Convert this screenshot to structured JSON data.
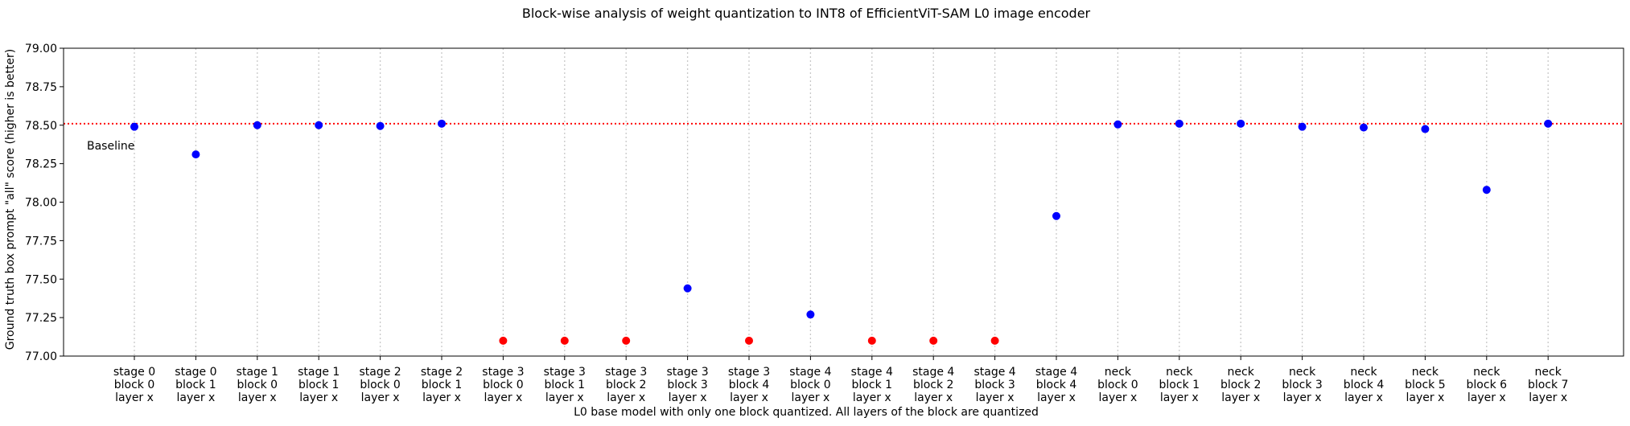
{
  "chart_data": {
    "type": "scatter",
    "title": "Block-wise analysis of weight quantization to INT8 of EfficientViT-SAM L0 image encoder",
    "xlabel": "L0 base model with only one block quantized. All layers of the block are quantized",
    "ylabel": "Ground truth box prompt \"all\" score (higher is better)",
    "ylim": [
      77.0,
      79.0
    ],
    "yticks": [
      "77.00",
      "77.25",
      "77.50",
      "77.75",
      "78.00",
      "78.25",
      "78.50",
      "78.75",
      "79.00"
    ],
    "categories": [
      [
        "stage 0",
        "block 0",
        "layer x"
      ],
      [
        "stage 0",
        "block 1",
        "layer x"
      ],
      [
        "stage 1",
        "block 0",
        "layer x"
      ],
      [
        "stage 1",
        "block 1",
        "layer x"
      ],
      [
        "stage 2",
        "block 0",
        "layer x"
      ],
      [
        "stage 2",
        "block 1",
        "layer x"
      ],
      [
        "stage 3",
        "block 0",
        "layer x"
      ],
      [
        "stage 3",
        "block 1",
        "layer x"
      ],
      [
        "stage 3",
        "block 2",
        "layer x"
      ],
      [
        "stage 3",
        "block 3",
        "layer x"
      ],
      [
        "stage 3",
        "block 4",
        "layer x"
      ],
      [
        "stage 4",
        "block 0",
        "layer x"
      ],
      [
        "stage 4",
        "block 1",
        "layer x"
      ],
      [
        "stage 4",
        "block 2",
        "layer x"
      ],
      [
        "stage 4",
        "block 3",
        "layer x"
      ],
      [
        "stage 4",
        "block 4",
        "layer x"
      ],
      [
        "neck",
        "block 0",
        "layer x"
      ],
      [
        "neck",
        "block 1",
        "layer x"
      ],
      [
        "neck",
        "block 2",
        "layer x"
      ],
      [
        "neck",
        "block 3",
        "layer x"
      ],
      [
        "neck",
        "block 4",
        "layer x"
      ],
      [
        "neck",
        "block 5",
        "layer x"
      ],
      [
        "neck",
        "block 6",
        "layer x"
      ],
      [
        "neck",
        "block 7",
        "layer x"
      ]
    ],
    "values": [
      78.49,
      78.31,
      78.5,
      78.5,
      78.495,
      78.51,
      77.1,
      77.1,
      77.1,
      77.44,
      77.1,
      77.27,
      77.1,
      77.1,
      77.1,
      77.91,
      78.505,
      78.51,
      78.51,
      78.49,
      78.485,
      78.475,
      78.08,
      78.51
    ],
    "marker_colors": [
      "blue",
      "blue",
      "blue",
      "blue",
      "blue",
      "blue",
      "red",
      "red",
      "red",
      "blue",
      "red",
      "blue",
      "red",
      "red",
      "red",
      "blue",
      "blue",
      "blue",
      "blue",
      "blue",
      "blue",
      "blue",
      "blue",
      "blue"
    ],
    "baseline": {
      "value": 78.51,
      "label": "Baseline",
      "color": "#ff0000",
      "style": "dotted"
    },
    "grid": "vertical dotted at each category",
    "colors": {
      "blue": "#0000ff",
      "red": "#ff0000",
      "grid": "#c8c8c8",
      "axis": "#000000"
    }
  }
}
